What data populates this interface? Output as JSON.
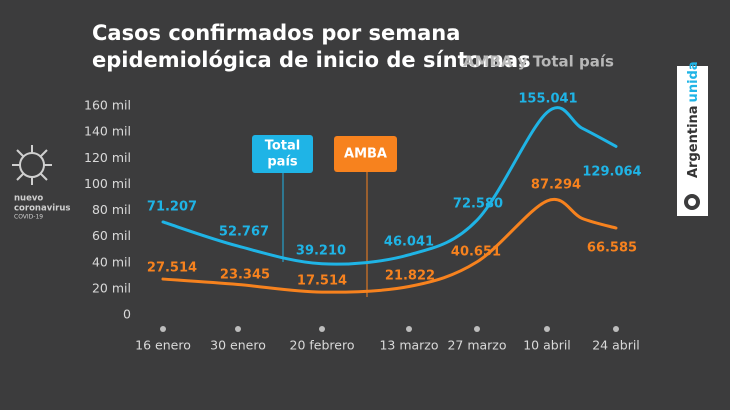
{
  "chart_data": {
    "type": "line",
    "title": [
      "Casos confirmados por semana",
      "epidemiológica de inicio de síntomas"
    ],
    "subtitle": "AMBA y Total país",
    "categories": [
      "16 enero",
      "30 enero",
      "20 febrero",
      "13 marzo",
      "27 marzo",
      "10 abril",
      null,
      "24 abril"
    ],
    "series": [
      {
        "name": [
          "Total",
          "país"
        ],
        "color": "#1fb4e6",
        "values": [
          71207,
          52767,
          39210,
          46041,
          72580,
          155041,
          143000,
          129064
        ],
        "value_labels": [
          "71.207",
          "52.767",
          "39.210",
          "46.041",
          "72.580",
          "155.041",
          null,
          "129.064"
        ]
      },
      {
        "name": "AMBA",
        "color": "#f7821e",
        "values": [
          27514,
          23345,
          17514,
          21822,
          40651,
          87294,
          74000,
          66585
        ],
        "value_labels": [
          "27.514",
          "23.345",
          "17.514",
          "21.822",
          "40.651",
          "87.294",
          null,
          "66.585"
        ]
      }
    ],
    "ylim": [
      0,
      160000
    ],
    "yticks": [
      0,
      {
        "value": 20000,
        "label": "20 mil"
      },
      {
        "value": 40000,
        "label": "40 mil"
      },
      {
        "value": 60000,
        "label": "60 mil"
      },
      {
        "value": 80000,
        "label": "80 mil"
      },
      {
        "value": 100000,
        "label": "100 mil"
      },
      {
        "value": 120000,
        "label": "120 mil"
      },
      {
        "value": 140000,
        "label": "140 mil"
      },
      {
        "value": 160000,
        "label": "160 mil"
      }
    ],
    "grid": false
  },
  "branding": {
    "virus_label": [
      "nuevo",
      "coronavirus",
      "COVID-19"
    ],
    "badge": [
      "Argentina",
      "unida"
    ]
  }
}
